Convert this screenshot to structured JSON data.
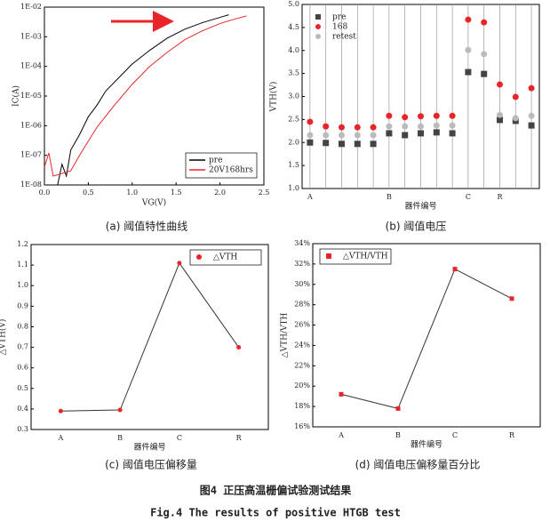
{
  "chart_data": [
    {
      "type": "line",
      "log_y": true,
      "x_label": "VG(V)",
      "y_label": "IC(A)",
      "caption": "(a) 阈值特性曲线",
      "xlim": [
        0,
        2.5
      ],
      "xticks": [
        {
          "value": 0,
          "label": "0.0"
        },
        0.5,
        {
          "value": 1,
          "label": "1.0"
        },
        1.5,
        {
          "value": 2,
          "label": "2.0"
        },
        2.5
      ],
      "ylim": [
        1e-08,
        0.01
      ],
      "yticks": [
        {
          "value": 1e-08,
          "label": "1E-08"
        },
        {
          "value": 1e-07,
          "label": "1E-07"
        },
        {
          "value": 1e-06,
          "label": "1E-06"
        },
        {
          "value": 1e-05,
          "label": "1E-05"
        },
        {
          "value": 0.0001,
          "label": "1E-04"
        },
        {
          "value": 0.001,
          "label": "1E-03"
        },
        {
          "value": 0.01,
          "label": "1E-02"
        }
      ],
      "legend": "lower right",
      "series": [
        {
          "name": "pre",
          "color": "#000000",
          "x": [
            0.15,
            0.2,
            0.25,
            0.3,
            0.4,
            0.5,
            0.6,
            0.7,
            0.8,
            1.0,
            1.2,
            1.4,
            1.6,
            1.8,
            2.0,
            2.1
          ],
          "values": [
            1e-08,
            5e-08,
            2e-08,
            1.5e-07,
            5e-07,
            2e-06,
            5e-06,
            1.5e-05,
            3e-05,
            0.00012,
            0.00035,
            0.0009,
            0.0018,
            0.003,
            0.0045,
            0.0055
          ]
        },
        {
          "name": "20V168hrs",
          "color": "#e8262a",
          "x": [
            0,
            0.05,
            0.1,
            0.3,
            0.4,
            0.5,
            0.6,
            0.8,
            1.0,
            1.2,
            1.4,
            1.6,
            1.8,
            2.0,
            2.2,
            2.3
          ],
          "values": [
            4e-08,
            1.2e-07,
            2e-08,
            3e-08,
            1e-07,
            3e-07,
            9e-07,
            5e-06,
            2.5e-05,
            0.0001,
            0.0003,
            0.0008,
            0.0016,
            0.0028,
            0.0042,
            0.005
          ]
        }
      ]
    },
    {
      "type": "scatter",
      "x_label": "器件编号",
      "y_label": "VTH(V)",
      "caption": "(b) 阈值电压",
      "grid": "x",
      "categories": [
        "A",
        null,
        null,
        null,
        null,
        "B",
        null,
        null,
        null,
        null,
        "C",
        null,
        "R",
        null,
        null
      ],
      "ylim": [
        1,
        5
      ],
      "yticks": [
        {
          "value": 1,
          "label": "1.0"
        },
        1.5,
        {
          "value": 2,
          "label": "2.0"
        },
        2.5,
        {
          "value": 3,
          "label": "3.0"
        },
        3.5,
        {
          "value": 4,
          "label": "4.0"
        },
        4.5,
        {
          "value": 5,
          "label": "5.0"
        }
      ],
      "legend": "upper left",
      "series": [
        {
          "name": "pre",
          "color": "#444444",
          "marker": "square",
          "values": [
            2.0,
            1.99,
            1.97,
            1.97,
            1.97,
            2.2,
            2.16,
            2.2,
            2.22,
            2.2,
            3.53,
            3.49,
            2.49,
            2.47,
            2.37
          ]
        },
        {
          "name": "168",
          "color": "#e8262a",
          "marker": "circle",
          "values": [
            2.45,
            2.35,
            2.33,
            2.33,
            2.33,
            2.58,
            2.55,
            2.57,
            2.58,
            2.58,
            4.67,
            4.61,
            3.26,
            2.99,
            3.18
          ]
        },
        {
          "name": "retest",
          "color": "#bbbbbb",
          "marker": "circle",
          "values": [
            2.16,
            2.16,
            2.16,
            2.16,
            2.16,
            2.35,
            2.35,
            2.35,
            2.37,
            2.37,
            4.01,
            3.92,
            2.6,
            2.53,
            2.58
          ]
        }
      ]
    },
    {
      "type": "line",
      "x_label": "器件编号",
      "y_label": "△VTH(V)",
      "caption": "(c) 阈值电压偏移量",
      "categories": [
        "A",
        "B",
        "C",
        "R"
      ],
      "ylim": [
        0.3,
        1.2
      ],
      "yticks": [
        0.3,
        0.4,
        0.5,
        0.6,
        0.7,
        0.8,
        0.9,
        {
          "value": 1,
          "label": "1.0"
        },
        1.1,
        1.2
      ],
      "legend": "upper right",
      "series": [
        {
          "name": "△VTH",
          "color": "#e8262a",
          "line_color": "#333333",
          "marker": "circle",
          "values": [
            0.39,
            0.395,
            1.11,
            0.7
          ]
        }
      ]
    },
    {
      "type": "line",
      "x_label": "器件编号",
      "y_label": "△VTH/VTH",
      "caption": "(d) 阈值电压偏移量百分比",
      "categories": [
        "A",
        "B",
        "C",
        "R"
      ],
      "ylim": [
        16,
        34
      ],
      "yticks": [
        {
          "value": 16,
          "label": "16%"
        },
        {
          "value": 18,
          "label": "18%"
        },
        {
          "value": 20,
          "label": "20%"
        },
        {
          "value": 22,
          "label": "22%"
        },
        {
          "value": 24,
          "label": "24%"
        },
        {
          "value": 26,
          "label": "26%"
        },
        {
          "value": 28,
          "label": "28%"
        },
        {
          "value": 30,
          "label": "30%"
        },
        {
          "value": 32,
          "label": "32%"
        },
        {
          "value": 34,
          "label": "34%"
        }
      ],
      "legend": "upper left",
      "series": [
        {
          "name": "△VTH/VTH",
          "color": "#e8262a",
          "line_color": "#333333",
          "marker": "square",
          "values": [
            19.2,
            17.8,
            31.5,
            28.6
          ]
        }
      ]
    }
  ],
  "figure": {
    "caption_cn": "图4  正压高温栅偏试验测试结果",
    "caption_en": "Fig.4 The results of positive HTGB test"
  }
}
